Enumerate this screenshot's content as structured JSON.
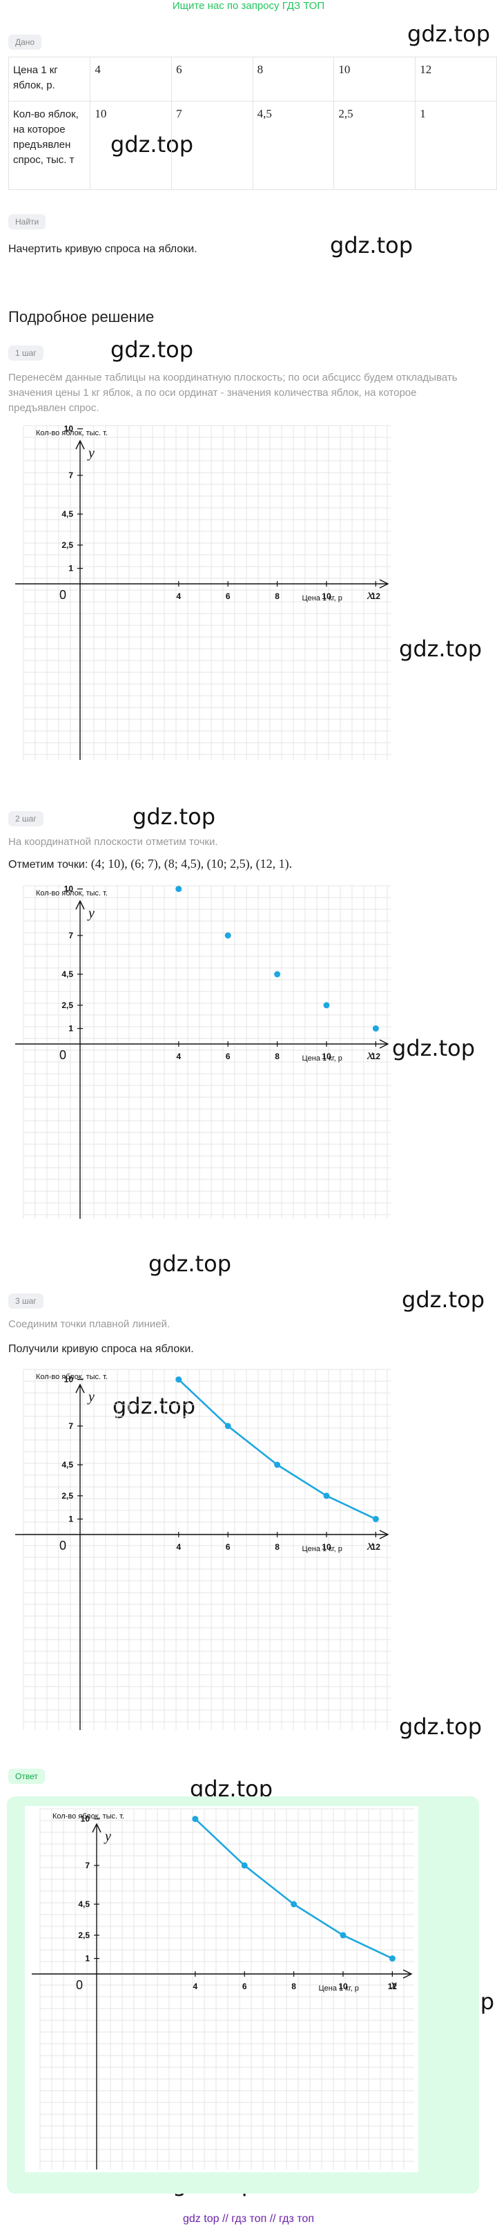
{
  "banner": "Ищите нас по запросу ГДЗ ТОП",
  "watermark": "gdz.top",
  "given": {
    "tag": "Дано",
    "row1_header": "Цена 1 кг яблок, р.",
    "row2_header": "Кол-во яблок, на которое предъявлен спрос, тыс. т",
    "prices": [
      "4",
      "6",
      "8",
      "10",
      "12"
    ],
    "quantities": [
      "10",
      "7",
      "4,5",
      "2,5",
      "1"
    ]
  },
  "find": {
    "tag": "Найти",
    "text": "Начертить кривую спроса на яблоки."
  },
  "solution": {
    "title": "Подробное решение",
    "step1": {
      "tag": "1 шаг",
      "text": "Перенесём данные таблицы на координатную плоскость; по оси абсцисс будем откладывать значения цены 1 кг яблок, а по оси ординат - значения количества яблок, на которое предъявлен спрос."
    },
    "step2": {
      "tag": "2 шаг",
      "text": "На координатной плоскости отметим точки.",
      "points_label": "Отметим точки:",
      "points": "(4; 10),  (6; 7),  (8; 4,5),  (10; 2,5),  (12, 1)."
    },
    "step3": {
      "tag": "3 шаг",
      "text": "Соединим точки плавной линией.",
      "result": "Получили кривую спроса на яблоки."
    },
    "answer_tag": "Ответ"
  },
  "chart_data": {
    "type": "line",
    "title": "",
    "ylabel_text": "Кол-во яблок, тыс. т.",
    "xlabel_text": "Цена 1 кг, р",
    "x_axis_letter": "x",
    "y_axis_letter": "y",
    "origin_label": "0",
    "x_ticks": [
      "4",
      "6",
      "8",
      "10",
      "12"
    ],
    "y_ticks": [
      "1",
      "2,5",
      "4,5",
      "7",
      "10"
    ],
    "x": [
      4,
      6,
      8,
      10,
      12
    ],
    "y": [
      10,
      7,
      4.5,
      2.5,
      1
    ],
    "xlim": [
      0,
      20
    ],
    "ylim": [
      0,
      13
    ],
    "line_color": "#1da7e0",
    "grid": true
  },
  "footer": {
    "a": "gdz top",
    "sep1": "//",
    "b": "гдз топ",
    "sep2": "//",
    "c": "гдз топ"
  }
}
